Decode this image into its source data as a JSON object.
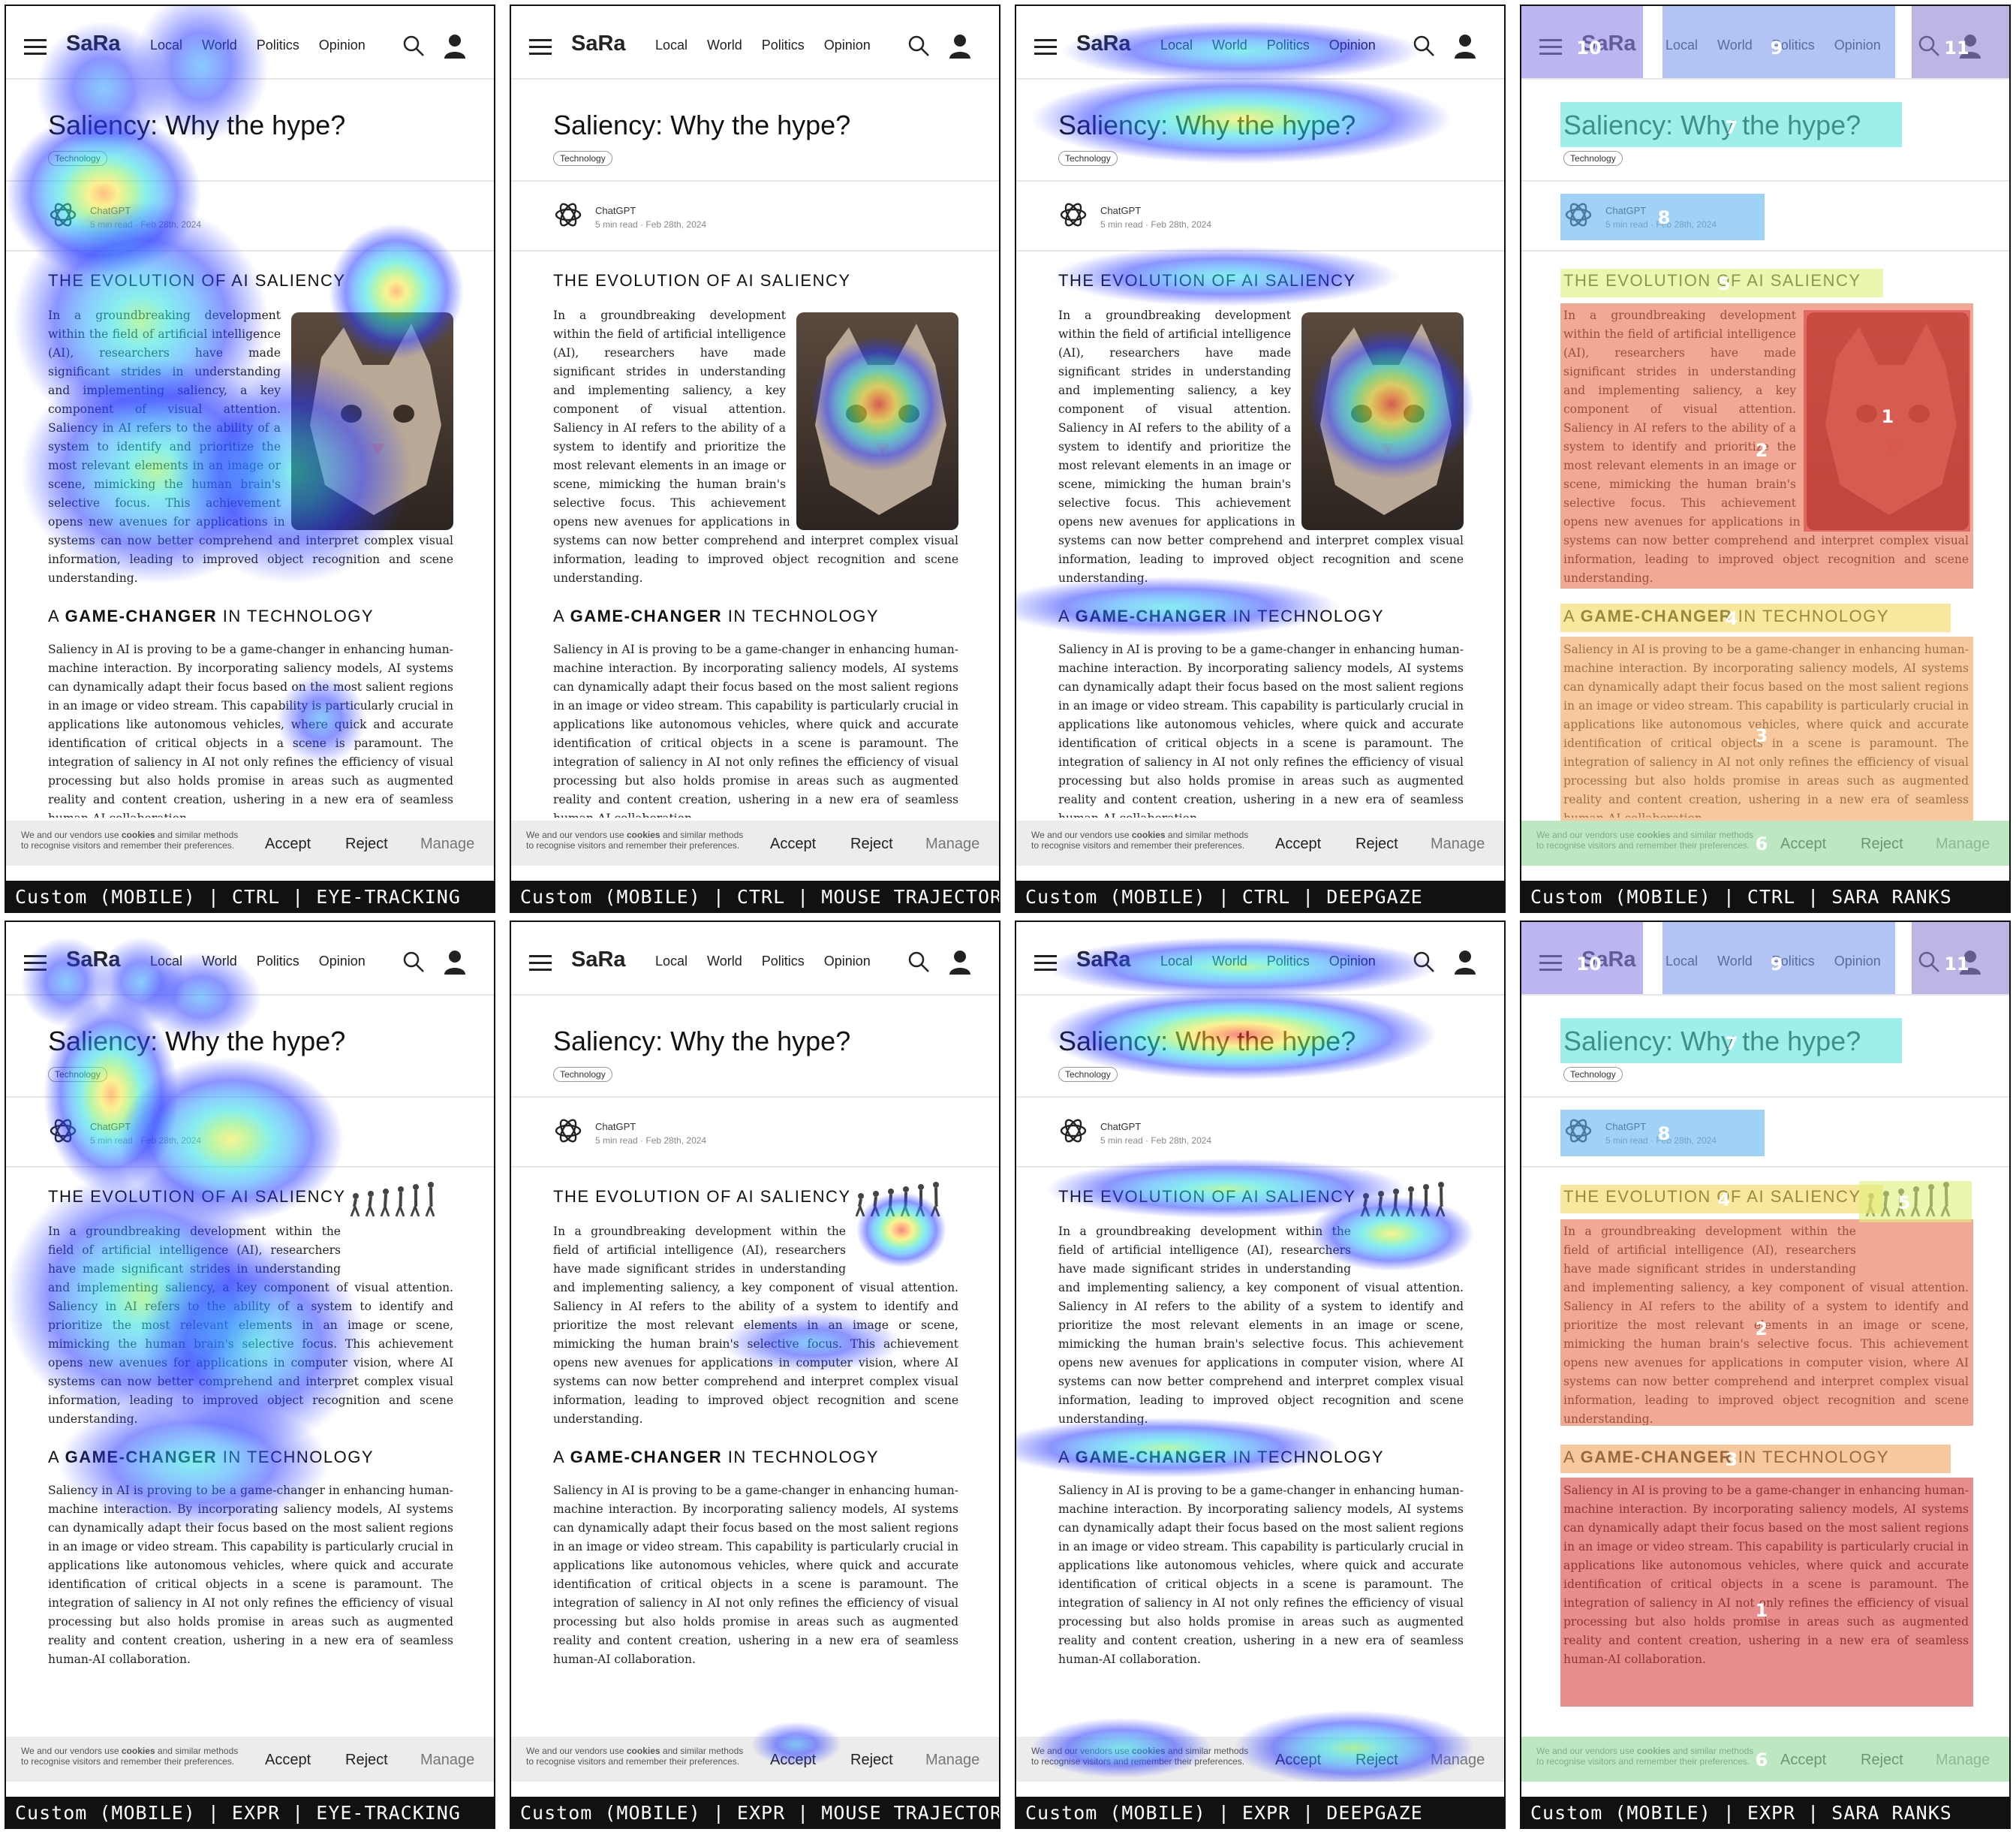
{
  "site": {
    "logo": "SaRa",
    "nav": [
      "Local",
      "World",
      "Politics",
      "Opinion"
    ]
  },
  "article": {
    "title": "Saliency: Why the hype?",
    "tag": "Technology",
    "author": "ChatGPT",
    "meta": "5 min read · Feb 28th, 2024",
    "h2a_pre": "THE EVOLUTION OF AI SALIENCY",
    "h2b_pre": "A ",
    "h2b_bold": "GAME-CHANGER",
    "h2b_post": " IN TECHNOLOGY",
    "p1": "In a groundbreaking development within the field of artificial intelligence (AI), researchers have made significant strides in understanding and implementing saliency, a key component of visual attention. Saliency in AI refers to the ability of a system to identify and prioritize the most relevant elements in an image or scene, mimicking the human brain's selective focus. This achievement opens new avenues for applications in computer vision, where AI systems can now better comprehend and interpret complex visual information, leading to improved object recognition and scene understanding.",
    "p2": "Saliency in AI is proving to be a game-changer in enhancing human-machine interaction. By incorporating saliency models, AI systems can dynamically adapt their focus based on the most salient regions in an image or video stream. This capability is particularly crucial in applications like autonomous vehicles, where quick and accurate identification of critical objects in a scene is paramount. The integration of saliency in AI not only refines the efficiency of visual processing but also holds promise in areas such as augmented reality and content creation, ushering in a new era of seamless human-AI collaboration."
  },
  "cookie": {
    "text_pre": "We and our vendors use ",
    "text_bold": "cookies",
    "text_post": " and similar methods to recognise visitors and remember their preferences.",
    "accept": "Accept",
    "reject": "Reject",
    "manage": "Manage"
  },
  "panels": [
    {
      "caption": "Custom (MOBILE) | CTRL | EYE-TRACKING",
      "variant": "ctrl",
      "overlay": "eye"
    },
    {
      "caption": "Custom (MOBILE) | CTRL | MOUSE TRAJECTORY",
      "variant": "ctrl",
      "overlay": "mouse"
    },
    {
      "caption": "Custom (MOBILE) | CTRL | DEEPGAZE",
      "variant": "ctrl",
      "overlay": "deepgaze"
    },
    {
      "caption": "Custom (MOBILE) | CTRL | SARA RANKS",
      "variant": "ctrl",
      "overlay": "sara"
    },
    {
      "caption": "Custom (MOBILE) | EXPR | EYE-TRACKING",
      "variant": "expr",
      "overlay": "eye"
    },
    {
      "caption": "Custom (MOBILE) | EXPR | MOUSE TRAJECTORY",
      "variant": "expr",
      "overlay": "mouse"
    },
    {
      "caption": "Custom (MOBILE) | EXPR | DEEPGAZE",
      "variant": "expr",
      "overlay": "deepgaze"
    },
    {
      "caption": "Custom (MOBILE) | EXPR | SARA RANKS",
      "variant": "expr",
      "overlay": "sara"
    }
  ],
  "sara_ranks": {
    "ctrl": {
      "image": "1",
      "para1": "2",
      "para2": "3",
      "h2b": "4",
      "h2a": "5",
      "cookie": "6",
      "title": "7",
      "author": "8",
      "nav": "9",
      "logo": "10",
      "icons": "11"
    },
    "expr": {
      "para2": "1",
      "para1": "2",
      "h2b": "3",
      "h2a": "4",
      "image": "5",
      "cookie": "6",
      "title": "7",
      "author": "8",
      "nav": "9",
      "logo": "10",
      "icons": "11"
    }
  },
  "colors": {
    "rank1": "#d84040",
    "rank2": "#e8704f",
    "rank3": "#f1a35c",
    "rank4": "#f3d85c",
    "rank5": "#dff07a",
    "rank6": "#9fe5a5",
    "rank7": "#5ee3e0",
    "rank8": "#60b4f0",
    "rank9": "#7f9cf0",
    "rank10": "#8e86e8",
    "rank11": "#8e86d0"
  }
}
